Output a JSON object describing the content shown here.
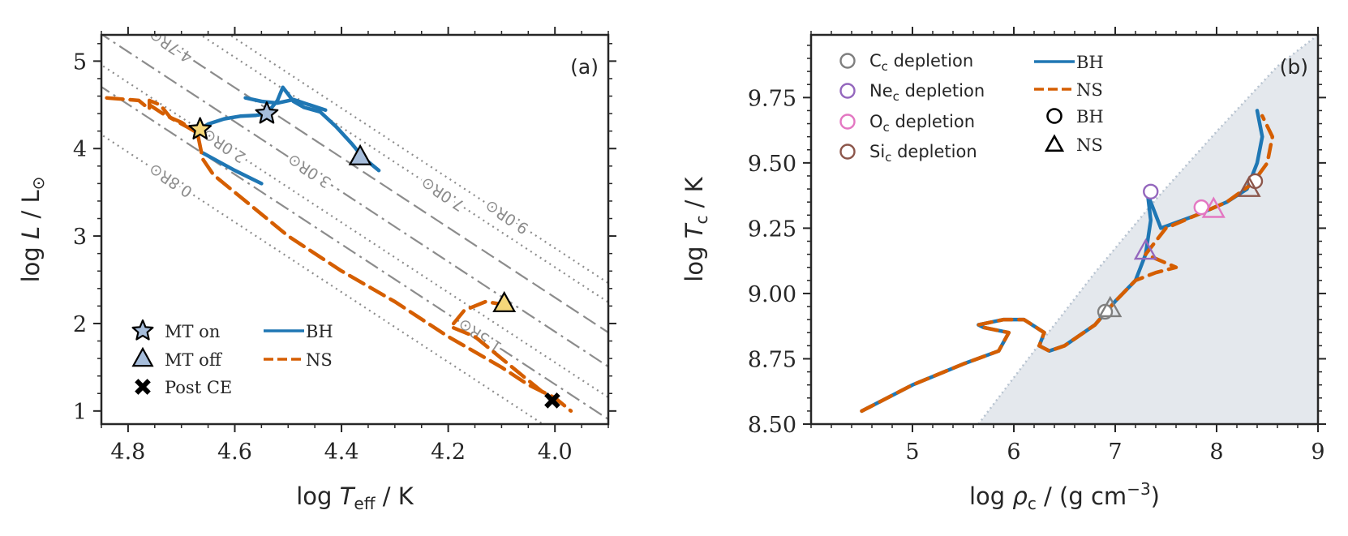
{
  "chart_data": [
    {
      "type": "line",
      "panel_label": "(a)",
      "xlabel": {
        "prefix": "log ",
        "var": "T",
        "sub": "eff",
        "unit": " / K"
      },
      "ylabel": {
        "prefix": "log ",
        "var": "L",
        "unit": " / L",
        "sun": "⊙"
      },
      "xlim": [
        4.85,
        3.9
      ],
      "ylim": [
        0.85,
        5.3
      ],
      "xticks": [
        4.8,
        4.6,
        4.4,
        4.2,
        4.0
      ],
      "xtick_labels": [
        "4.8",
        "4.6",
        "4.4",
        "4.2",
        "4.0"
      ],
      "yticks": [
        1,
        2,
        3,
        4,
        5
      ],
      "ytick_labels": [
        "1",
        "2",
        "3",
        "4",
        "5"
      ],
      "radius_lines": [
        {
          "label": "0.8R⊙",
          "R": 0.8,
          "style": "dotted",
          "label_x": 4.72
        },
        {
          "label": "1.5R⊙",
          "R": 1.5,
          "style": "dashdot",
          "label_x": 4.14
        },
        {
          "label": "2.0R⊙",
          "R": 2.0,
          "style": "dotted",
          "label_x": 4.62
        },
        {
          "label": "3.0R⊙",
          "R": 3.0,
          "style": "dashdot",
          "label_x": 4.46
        },
        {
          "label": "4.7R⊙",
          "R": 4.7,
          "style": "dashed",
          "label_x": 4.72
        },
        {
          "label": "7.0R⊙",
          "R": 7.0,
          "style": "dotted",
          "label_x": 4.21
        },
        {
          "label": "9.0R⊙",
          "R": 9.0,
          "style": "dotted",
          "label_x": 4.09
        }
      ],
      "series": [
        {
          "name": "BH",
          "color": "#1f77b4",
          "style": "solid",
          "x": [
            4.67,
            4.65,
            4.62,
            4.59,
            4.56,
            4.54,
            4.52,
            4.51,
            4.5,
            4.49,
            4.47,
            4.44,
            4.41,
            4.38,
            4.36,
            4.33
          ],
          "y": [
            4.2,
            4.28,
            4.34,
            4.37,
            4.38,
            4.4,
            4.55,
            4.7,
            4.62,
            4.54,
            4.47,
            4.42,
            4.25,
            4.05,
            3.9,
            3.75
          ],
          "extra": [
            {
              "x": [
                4.58,
                4.55,
                4.52,
                4.49,
                4.46,
                4.43
              ],
              "y": [
                4.58,
                4.54,
                4.52,
                4.56,
                4.5,
                4.44
              ]
            },
            {
              "x": [
                4.66,
                4.6,
                4.55
              ],
              "y": [
                3.95,
                3.75,
                3.6
              ]
            }
          ]
        },
        {
          "name": "NS",
          "color": "#d55e00",
          "style": "dashed",
          "x": [
            4.84,
            4.78,
            4.76,
            4.76,
            4.74,
            4.72,
            4.69,
            4.67,
            4.66,
            4.64,
            4.6,
            4.55,
            4.5,
            4.4,
            4.3,
            4.2,
            4.1,
            4.05,
            4.0,
            3.97
          ],
          "y": [
            4.58,
            4.55,
            4.45,
            4.55,
            4.5,
            4.35,
            4.25,
            4.18,
            3.88,
            3.7,
            3.5,
            3.25,
            3.0,
            2.6,
            2.25,
            1.85,
            1.5,
            1.3,
            1.15,
            1.0
          ],
          "extra": [
            {
              "x": [
                4.76,
                4.73,
                4.7,
                4.68
              ],
              "y": [
                4.5,
                4.38,
                4.3,
                4.22
              ]
            },
            {
              "x": [
                4.19,
                4.17,
                4.13,
                4.1,
                4.09
              ],
              "y": [
                2.0,
                2.15,
                2.25,
                2.22,
                2.2
              ]
            },
            {
              "x": [
                4.19,
                4.15,
                4.1,
                4.05,
                4.02
              ],
              "y": [
                1.95,
                1.85,
                1.6,
                1.35,
                1.2
              ]
            }
          ]
        }
      ],
      "markers": [
        {
          "name": "MT on",
          "marker": "star",
          "x": 4.54,
          "y": 4.4,
          "color": "#a6bddb"
        },
        {
          "name": "MT on",
          "marker": "star",
          "x": 4.665,
          "y": 4.22,
          "color": "#f5d77a"
        },
        {
          "name": "MT off",
          "marker": "triangle",
          "x": 4.365,
          "y": 3.9,
          "color": "#a6bddb"
        },
        {
          "name": "MT off",
          "marker": "triangle",
          "x": 4.095,
          "y": 2.22,
          "color": "#f5d77a"
        },
        {
          "name": "Post CE",
          "marker": "x",
          "x": 4.005,
          "y": 1.12,
          "color": "#000000"
        }
      ],
      "legend": {
        "position": "lower-left",
        "entries": [
          "MT on",
          "MT off",
          "Post CE",
          "BH",
          "NS"
        ]
      }
    },
    {
      "type": "line",
      "panel_label": "(b)",
      "xlabel": {
        "prefix": "log ",
        "var": "ρ",
        "sub": "c",
        "unit": " / (g cm",
        "exp": "−3",
        "close": ")"
      },
      "ylabel": {
        "prefix": "log ",
        "var": "T",
        "sub": "c",
        "unit": " / K"
      },
      "xlim": [
        4,
        9
      ],
      "ylim": [
        8.5,
        9.99
      ],
      "xticks": [
        5,
        6,
        7,
        8,
        9
      ],
      "xtick_labels": [
        "5",
        "6",
        "7",
        "8",
        "9"
      ],
      "yticks": [
        8.5,
        8.75,
        9.0,
        9.25,
        9.5,
        9.75
      ],
      "ytick_labels": [
        "8.50",
        "8.75",
        "9.00",
        "9.25",
        "9.50",
        "9.75"
      ],
      "degenerate_boundary": {
        "x": [
          5.65,
          6.2,
          6.8,
          7.4,
          8.0,
          8.6,
          9.0
        ],
        "y": [
          8.5,
          8.78,
          9.08,
          9.36,
          9.62,
          9.87,
          9.99
        ]
      },
      "series": [
        {
          "name": "BH",
          "color": "#1f77b4",
          "style": "solid",
          "x": [
            4.5,
            5.0,
            5.5,
            5.85,
            5.95,
            5.7,
            5.65,
            5.9,
            6.1,
            6.3,
            6.25,
            6.35,
            6.5,
            6.8,
            7.0,
            7.2,
            7.3,
            7.35,
            7.32,
            7.45,
            7.8,
            8.1,
            8.3,
            8.4,
            8.45,
            8.4
          ],
          "y": [
            8.55,
            8.65,
            8.73,
            8.78,
            8.85,
            8.87,
            8.88,
            8.9,
            8.9,
            8.85,
            8.8,
            8.78,
            8.8,
            8.88,
            8.97,
            9.05,
            9.15,
            9.28,
            9.38,
            9.25,
            9.3,
            9.35,
            9.4,
            9.5,
            9.6,
            9.7
          ]
        },
        {
          "name": "NS",
          "color": "#d55e00",
          "style": "dashed",
          "x": [
            4.5,
            5.0,
            5.5,
            5.85,
            5.95,
            5.7,
            5.65,
            5.9,
            6.1,
            6.3,
            6.25,
            6.35,
            6.5,
            6.8,
            7.0,
            7.2,
            7.4,
            7.6,
            7.3,
            7.5,
            7.8,
            8.1,
            8.35,
            8.5,
            8.55,
            8.45
          ],
          "y": [
            8.55,
            8.65,
            8.73,
            8.78,
            8.85,
            8.87,
            8.88,
            8.9,
            8.9,
            8.85,
            8.8,
            8.78,
            8.8,
            8.88,
            8.97,
            9.05,
            9.08,
            9.1,
            9.15,
            9.25,
            9.3,
            9.35,
            9.42,
            9.5,
            9.6,
            9.68
          ]
        }
      ],
      "markers": [
        {
          "name": "Cc depletion",
          "marker": "circle",
          "x": 6.9,
          "y": 8.93,
          "color": "#7f7f7f"
        },
        {
          "name": "Cc depletion",
          "marker": "triangle",
          "x": 6.95,
          "y": 8.94,
          "color": "#7f7f7f"
        },
        {
          "name": "Nec depletion",
          "marker": "circle",
          "x": 7.35,
          "y": 9.39,
          "color": "#9467bd"
        },
        {
          "name": "Nec depletion",
          "marker": "triangle",
          "x": 7.3,
          "y": 9.16,
          "color": "#9467bd"
        },
        {
          "name": "Oc depletion",
          "marker": "circle",
          "x": 7.85,
          "y": 9.33,
          "color": "#e377c2"
        },
        {
          "name": "Oc depletion",
          "marker": "triangle",
          "x": 7.97,
          "y": 9.32,
          "color": "#e377c2"
        },
        {
          "name": "Sic depletion",
          "marker": "circle",
          "x": 8.38,
          "y": 9.43,
          "color": "#8c564b"
        },
        {
          "name": "Sic depletion",
          "marker": "triangle",
          "x": 8.32,
          "y": 9.4,
          "color": "#8c564b"
        }
      ],
      "legend": {
        "position": "top-left",
        "entries": [
          {
            "base": "C",
            "sub": "c",
            "rest": " depletion",
            "color": "#7f7f7f"
          },
          {
            "base": "Ne",
            "sub": "c",
            "rest": " depletion",
            "color": "#9467bd"
          },
          {
            "base": "O",
            "sub": "c",
            "rest": " depletion",
            "color": "#e377c2"
          },
          {
            "base": "Si",
            "sub": "c",
            "rest": " depletion",
            "color": "#8c564b"
          }
        ],
        "lines": [
          "BH",
          "NS"
        ],
        "shapes": [
          "BH",
          "NS"
        ]
      }
    }
  ]
}
